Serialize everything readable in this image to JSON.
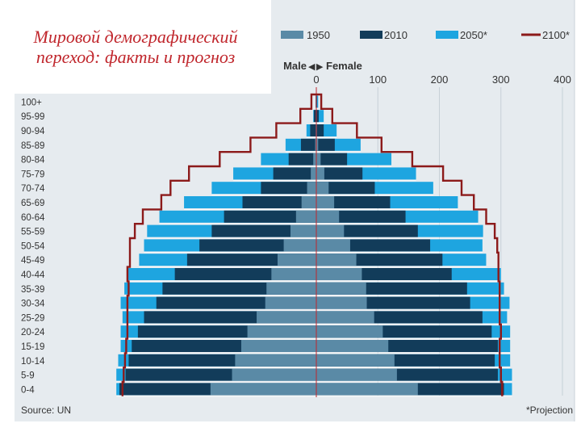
{
  "slide": {
    "title": "Мировой демографический переход: факты и прогноз"
  },
  "colors": {
    "panel_bg": "#e6ebef",
    "y1950": "#5a8aa6",
    "y2010": "#123c5a",
    "y2050": "#1ea5e0",
    "y2100": "#8c1a1a"
  },
  "chart_data": {
    "type": "bar",
    "orientation": "horizontal-population-pyramid",
    "legend": [
      {
        "key": "y1950",
        "label": "1950",
        "kind": "bar"
      },
      {
        "key": "y2010",
        "label": "2010",
        "kind": "bar"
      },
      {
        "key": "y2050",
        "label": "2050*",
        "kind": "bar"
      },
      {
        "key": "y2100",
        "label": "2100*",
        "kind": "line"
      }
    ],
    "axis_label": {
      "male": "Male",
      "female": "Female"
    },
    "x_ticks": [
      0,
      100,
      200,
      300,
      400
    ],
    "xlim": [
      0,
      410
    ],
    "categories": [
      "0-4",
      "5-9",
      "10-14",
      "15-19",
      "20-24",
      "25-29",
      "30-34",
      "35-39",
      "40-44",
      "45-49",
      "50-54",
      "55-59",
      "60-64",
      "65-69",
      "70-74",
      "75-79",
      "80-84",
      "85-89",
      "90-94",
      "95-99",
      "100+"
    ],
    "series": {
      "y1950": {
        "male": [
          172,
          137,
          132,
          122,
          112,
          97,
          83,
          81,
          73,
          63,
          53,
          42,
          33,
          24,
          15,
          9,
          5,
          2,
          1,
          0,
          0
        ],
        "female": [
          165,
          131,
          127,
          117,
          108,
          94,
          82,
          81,
          74,
          65,
          55,
          45,
          37,
          29,
          20,
          13,
          7,
          3,
          1,
          0,
          0
        ]
      },
      "y2010": {
        "male": [
          320,
          310,
          305,
          300,
          290,
          280,
          260,
          250,
          230,
          210,
          190,
          170,
          150,
          120,
          90,
          70,
          45,
          25,
          10,
          4,
          1
        ]
      },
      "y2050": {
        "male": [
          325,
          325,
          322,
          318,
          318,
          315,
          318,
          312,
          306,
          288,
          280,
          275,
          255,
          215,
          170,
          135,
          90,
          50,
          16,
          5,
          1
        ]
      },
      "y2100": {
        "male": [
          315,
          313,
          311,
          309,
          307,
          307,
          307,
          305,
          307,
          303,
          303,
          295,
          282,
          252,
          237,
          207,
          157,
          107,
          65,
          26,
          8
        ]
      },
      "female_2010": [
        305,
        295,
        290,
        295,
        285,
        270,
        250,
        245,
        220,
        205,
        185,
        165,
        145,
        120,
        95,
        75,
        50,
        30,
        12,
        4,
        1
      ],
      "female_2050": [
        318,
        318,
        315,
        315,
        315,
        310,
        314,
        305,
        300,
        276,
        270,
        271,
        263,
        230,
        190,
        162,
        122,
        72,
        33,
        12,
        3
      ],
      "female_2100": [
        302,
        300,
        298,
        298,
        300,
        298,
        298,
        298,
        296,
        296,
        294,
        290,
        276,
        256,
        236,
        206,
        156,
        106,
        66,
        26,
        8
      ]
    },
    "notes": {
      "source": "Source: UN",
      "projection": "*Projection"
    }
  }
}
